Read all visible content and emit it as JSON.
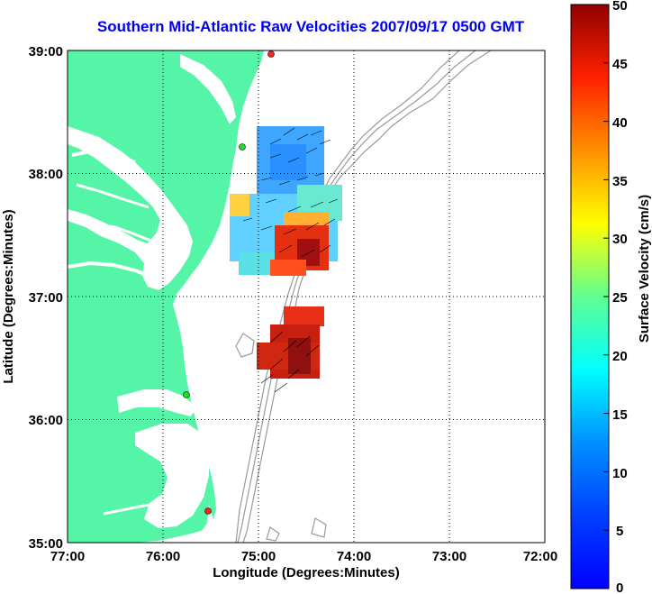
{
  "title": "Southern Mid-Atlantic Raw Velocities 2007/09/17 0500 GMT",
  "x_axis": {
    "label": "Longitude (Degrees:Minutes)",
    "ticks": [
      "77:00",
      "76:00",
      "75:00",
      "74:00",
      "73:00",
      "72:00"
    ]
  },
  "y_axis": {
    "label": "Latitude (Degrees:Minutes)",
    "ticks": [
      "39:00",
      "38:00",
      "37:00",
      "36:00",
      "35:00"
    ]
  },
  "colorbar": {
    "label": "Surface Velocity (cm/s)",
    "ticks": [
      "50",
      "45",
      "40",
      "35",
      "30",
      "25",
      "20",
      "15",
      "10",
      "5",
      "0"
    ],
    "min": 0,
    "max": 50,
    "colormap": "jet"
  },
  "colors": {
    "land": "#55f5a8",
    "ocean": "#ffffff",
    "bathymetry": "#9a9a9a",
    "title": "#0000ee",
    "station_red": "#ff2020",
    "station_green": "#22dd22"
  },
  "stations": [
    {
      "color": "red",
      "lon": -74.87,
      "lat": 38.97
    },
    {
      "color": "green",
      "lon": -75.17,
      "lat": 38.23
    },
    {
      "color": "green",
      "lon": -75.72,
      "lat": 36.18
    },
    {
      "color": "red",
      "lon": -75.48,
      "lat": 35.23
    }
  ]
}
